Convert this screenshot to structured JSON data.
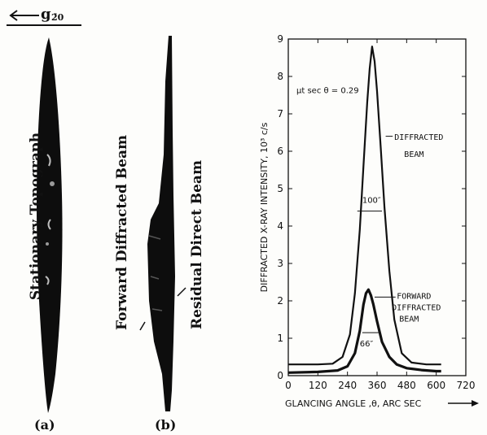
{
  "figure": {
    "g_vector_label": "g",
    "g_vector_subscript": "2̄0",
    "panel_a": {
      "side_label": "Stationary Topograph",
      "caption": "(a)"
    },
    "panel_b": {
      "side_label_1": "Forward Diffracted Beam",
      "side_label_2": "Residual Direct Beam",
      "caption": "(b)"
    }
  },
  "chart_data": {
    "type": "line",
    "xlabel": "GLANCING ANGLE ,θ, ARC SEC",
    "ylabel": "DIFFRACTED X-RAY INTENSITY, 10³ c/s",
    "xlim": [
      0,
      720
    ],
    "ylim": [
      0,
      9
    ],
    "x_ticks": [
      "0",
      "120",
      "240",
      "360",
      "480",
      "600",
      "720"
    ],
    "y_ticks": [
      "0",
      "1",
      "2",
      "3",
      "4",
      "5",
      "6",
      "7",
      "8",
      "9"
    ],
    "annotations": {
      "mu_t": "μt sec θ = 0.29",
      "diffracted_label_1": "DIFFRACTED",
      "diffracted_label_2": "BEAM",
      "diffracted_fwhm": "100″",
      "forward_label_1": "FORWARD",
      "forward_label_2": "DIFFRACTED",
      "forward_label_3": "BEAM",
      "forward_fwhm": "66″"
    },
    "series": [
      {
        "x": [
          0,
          60,
          120,
          180,
          220,
          250,
          270,
          290,
          305,
          320,
          330,
          340,
          350,
          360,
          375,
          390,
          410,
          430,
          460,
          500,
          560,
          620
        ],
        "y": [
          0.3,
          0.3,
          0.3,
          0.32,
          0.5,
          1.1,
          2.2,
          3.9,
          5.6,
          7.3,
          8.2,
          8.8,
          8.4,
          7.6,
          6.1,
          4.5,
          2.8,
          1.5,
          0.6,
          0.35,
          0.3,
          0.3
        ]
      },
      {
        "x": [
          0,
          120,
          200,
          240,
          270,
          290,
          305,
          315,
          325,
          335,
          345,
          360,
          380,
          410,
          440,
          480,
          540,
          600,
          620
        ],
        "y": [
          0.08,
          0.1,
          0.14,
          0.25,
          0.6,
          1.2,
          1.9,
          2.2,
          2.3,
          2.15,
          1.9,
          1.45,
          0.9,
          0.5,
          0.3,
          0.2,
          0.15,
          0.12,
          0.12
        ]
      }
    ],
    "fwhm_markers": [
      {
        "x0": 280,
        "x1": 380,
        "y": 4.4
      },
      {
        "x0": 300,
        "x1": 366,
        "y": 1.15
      }
    ]
  }
}
